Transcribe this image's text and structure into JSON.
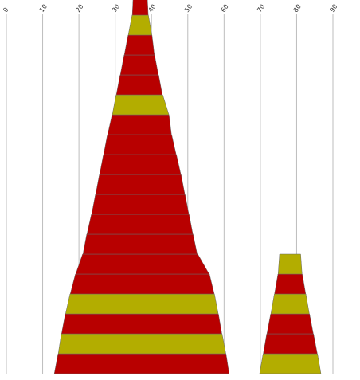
{
  "chart_data": {
    "type": "bar",
    "orientation": "horizontal-stacked-tapered",
    "title": "",
    "xlabel": "",
    "ylabel": "",
    "xlim": [
      0,
      90
    ],
    "x_ticks": [
      0,
      10,
      20,
      30,
      40,
      50,
      60,
      70,
      80,
      90
    ],
    "grid": "vertical",
    "colors": {
      "red": "#b80000",
      "olive": "#b3ad00"
    },
    "stacks": [
      {
        "name": "",
        "layers": [
          {
            "left": 13.2,
            "right": 61.4,
            "color": "red"
          },
          {
            "left": 14.3,
            "right": 60.5,
            "color": "olive"
          },
          {
            "left": 15.2,
            "right": 59.4,
            "color": "red"
          },
          {
            "left": 16.3,
            "right": 58.4,
            "color": "olive"
          },
          {
            "left": 17.6,
            "right": 57.3,
            "color": "red"
          },
          {
            "left": 19.1,
            "right": 55.9,
            "color": "red"
          },
          {
            "left": 21.1,
            "right": 52.6,
            "color": "red"
          },
          {
            "left": 22.2,
            "right": 51.4,
            "color": "red"
          },
          {
            "left": 23.5,
            "right": 50.3,
            "color": "red"
          },
          {
            "left": 24.6,
            "right": 49.2,
            "color": "red"
          },
          {
            "left": 25.7,
            "right": 48.1,
            "color": "red"
          },
          {
            "left": 26.8,
            "right": 46.8,
            "color": "red"
          },
          {
            "left": 27.9,
            "right": 45.5,
            "color": "red"
          },
          {
            "left": 29.2,
            "right": 44.8,
            "color": "olive"
          },
          {
            "left": 30.3,
            "right": 43.0,
            "color": "red"
          },
          {
            "left": 31.4,
            "right": 41.9,
            "color": "red"
          },
          {
            "left": 32.5,
            "right": 40.8,
            "color": "red"
          },
          {
            "left": 33.6,
            "right": 40.1,
            "color": "olive"
          },
          {
            "left": 34.7,
            "right": 39.1,
            "color": "red"
          }
        ]
      },
      {
        "name": "",
        "layers": [
          {
            "left": 69.8,
            "right": 86.7,
            "color": "olive"
          },
          {
            "left": 70.8,
            "right": 85.7,
            "color": "red"
          },
          {
            "left": 71.8,
            "right": 84.6,
            "color": "red"
          },
          {
            "left": 72.9,
            "right": 83.5,
            "color": "olive"
          },
          {
            "left": 73.9,
            "right": 82.5,
            "color": "red"
          },
          {
            "left": 74.9,
            "right": 81.5,
            "color": "olive"
          }
        ]
      }
    ]
  }
}
